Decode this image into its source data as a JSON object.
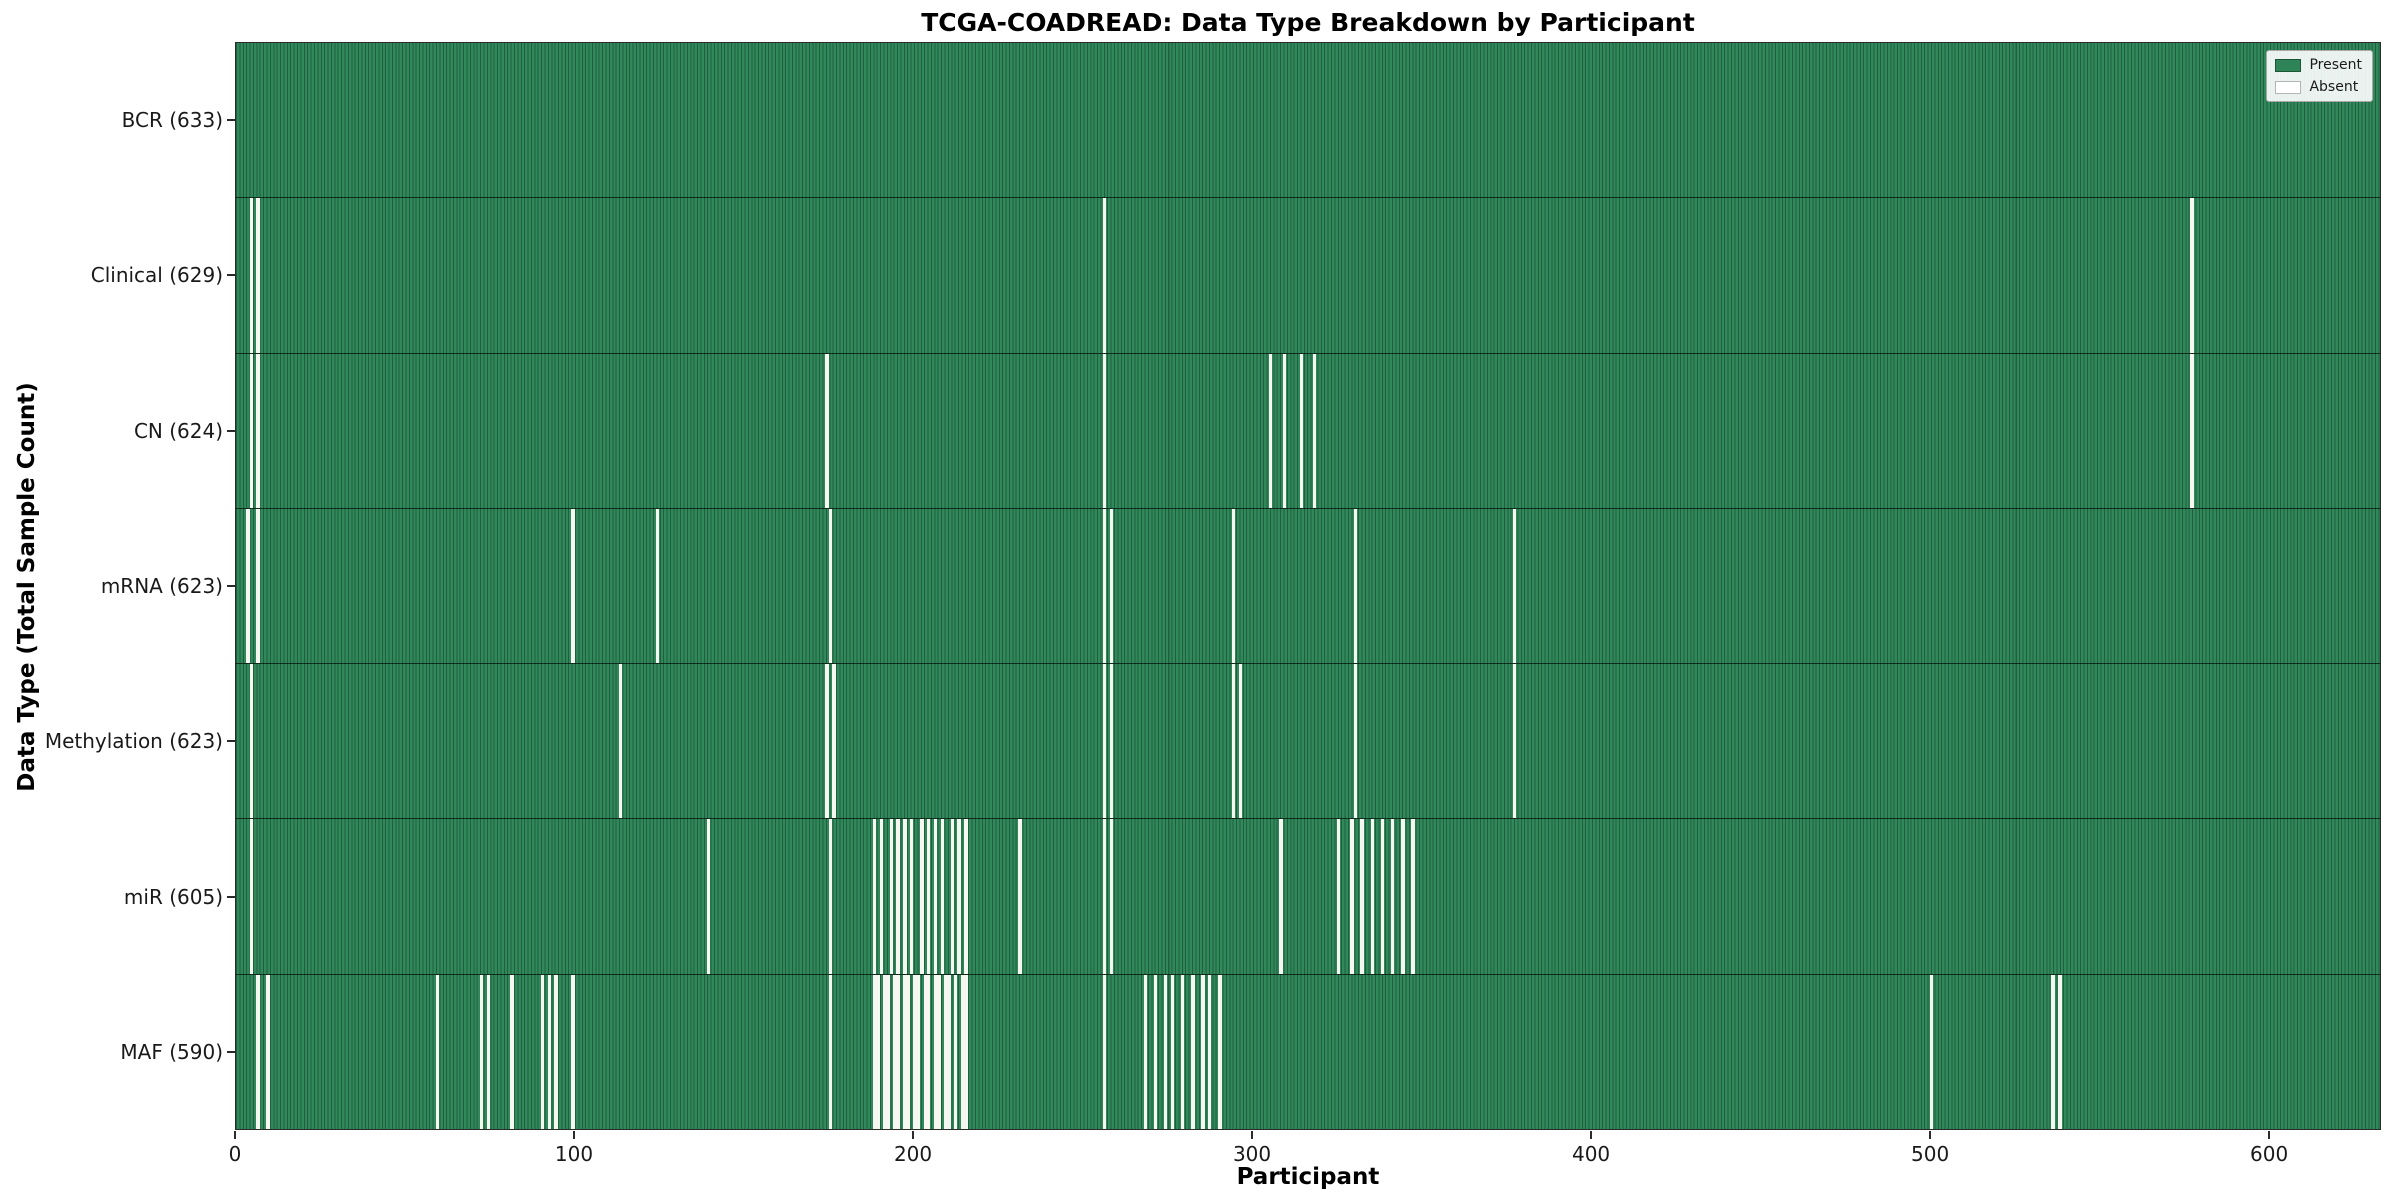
{
  "chart_data": {
    "type": "heatmap",
    "title": "TCGA-COADREAD: Data Type Breakdown by Participant",
    "xlabel": "Participant",
    "ylabel": "Data Type (Total Sample Count)",
    "total_participants": 633,
    "x_ticks": [
      0,
      100,
      200,
      300,
      400,
      500,
      600
    ],
    "legend": [
      "Present",
      "Absent"
    ],
    "legend_position": "upper right",
    "colors": {
      "present": "#2e8456",
      "absent": "#ffffff"
    },
    "rows": [
      {
        "name": "BCR",
        "label": "BCR (633)",
        "present_count": 633,
        "absent_participants": []
      },
      {
        "name": "Clinical",
        "label": "Clinical (629)",
        "present_count": 629,
        "absent_participants": [
          4,
          6,
          256,
          577
        ]
      },
      {
        "name": "CN",
        "label": "CN (624)",
        "present_count": 624,
        "absent_participants": [
          4,
          6,
          174,
          256,
          305,
          309,
          314,
          318,
          577
        ]
      },
      {
        "name": "mRNA",
        "label": "mRNA (623)",
        "present_count": 623,
        "absent_participants": [
          3,
          6,
          99,
          124,
          175,
          256,
          258,
          294,
          330,
          377
        ]
      },
      {
        "name": "Methylation",
        "label": "Methylation (623)",
        "present_count": 623,
        "absent_participants": [
          4,
          113,
          174,
          176,
          256,
          258,
          294,
          296,
          330,
          377
        ]
      },
      {
        "name": "miR",
        "label": "miR (605)",
        "present_count": 605,
        "absent_participants": [
          4,
          139,
          175,
          188,
          190,
          193,
          195,
          197,
          199,
          202,
          204,
          206,
          208,
          211,
          213,
          215,
          231,
          256,
          258,
          308,
          325,
          329,
          332,
          335,
          338,
          341,
          344,
          347
        ]
      },
      {
        "name": "MAF",
        "label": "MAF (590)",
        "present_count": 590,
        "absent_participants": [
          6,
          9,
          59,
          72,
          74,
          81,
          90,
          92,
          94,
          99,
          175,
          188,
          189,
          191,
          192,
          194,
          195,
          197,
          198,
          200,
          201,
          203,
          204,
          206,
          207,
          209,
          210,
          212,
          214,
          215,
          256,
          268,
          271,
          274,
          276,
          279,
          282,
          285,
          287,
          290,
          500,
          536,
          538
        ]
      }
    ]
  }
}
